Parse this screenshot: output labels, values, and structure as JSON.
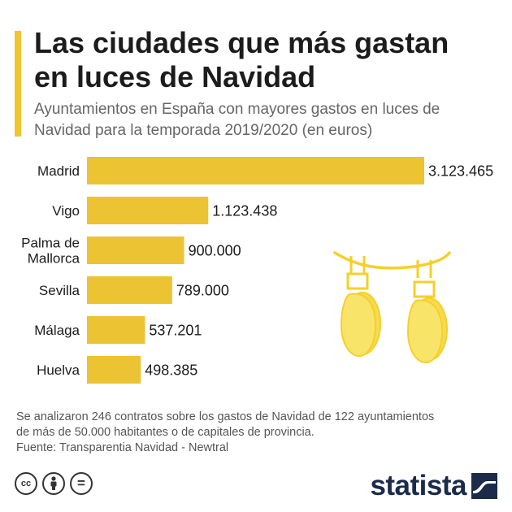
{
  "header": {
    "title_line1": "Las ciudades que más gastan",
    "title_line2": "en luces de Navidad",
    "subtitle_line1": "Ayuntamientos en España con mayores gastos en luces de",
    "subtitle_line2": "Navidad para la temporada 2019/2020 (en euros)"
  },
  "colors": {
    "bar": "#ECC332",
    "accent": "#F0C530",
    "bulb_fill": "#F9E46A",
    "bulb_back": "#F7DA4E",
    "bulb_outline": "#F5D02A"
  },
  "chart_data": {
    "type": "bar",
    "orientation": "horizontal",
    "categories": [
      [
        "Madrid"
      ],
      [
        "Vigo"
      ],
      [
        "Palma de",
        "Mallorca"
      ],
      [
        "Sevilla"
      ],
      [
        "Málaga"
      ],
      [
        "Huelva"
      ]
    ],
    "values": [
      3123465,
      1123438,
      900000,
      789000,
      537201,
      498385
    ],
    "value_labels": [
      "3.123.465",
      "1.123.438",
      "900.000",
      "789.000",
      "537.201",
      "498.385"
    ],
    "xlim": [
      0,
      3123465
    ],
    "title": "",
    "xlabel": "",
    "ylabel": "",
    "grid": false,
    "legend": "none"
  },
  "notes": {
    "line1": "Se analizaron 246 contratos sobre los gastos de Navidad de 122 ayuntamientos",
    "line2": "de más de 50.000 habitantes o de capitales de provincia.",
    "source": "Fuente: Transparentia Navidad - Newtral"
  },
  "footer": {
    "icons": [
      "creative-commons-icon",
      "attribution-icon",
      "no-derivatives-icon"
    ],
    "cc_text": "cc",
    "eq_text": "=",
    "logo_text": "statista"
  }
}
